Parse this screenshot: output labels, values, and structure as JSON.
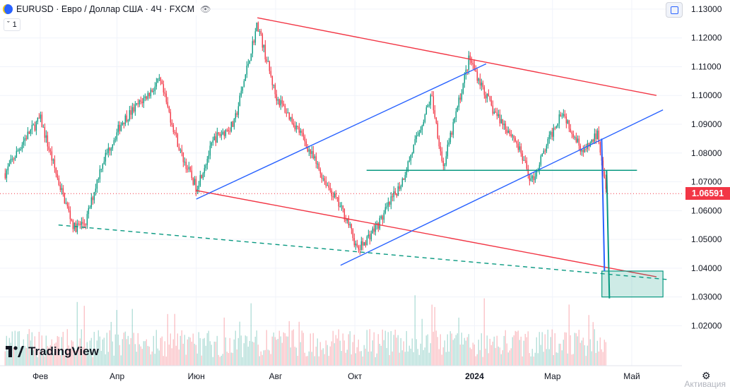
{
  "header": {
    "symbol": "EURUSD · Евро / Доллар США · 4Ч · FXCM",
    "eye_icon": "eye-icon"
  },
  "interval_box": {
    "chevron": "ˇ",
    "value": "1"
  },
  "logo": {
    "text": "TradingView"
  },
  "watermark": {
    "text": "Активация"
  },
  "colors": {
    "up": "#089981",
    "down": "#f23645",
    "red_line": "#f23645",
    "blue_line": "#2962ff",
    "green_line": "#089981",
    "last_price_bg": "#f23645"
  },
  "chart_data": {
    "type": "candlestick",
    "symbol": "EURUSD",
    "interval": "4Ч",
    "ylim": [
      1.0125,
      1.1317
    ],
    "y_ticks": [
      "1.13000",
      "1.12000",
      "1.11000",
      "1.10000",
      "1.09000",
      "1.08000",
      "1.07000",
      "1.06000",
      "1.05000",
      "1.04000",
      "1.03000",
      "1.02000"
    ],
    "x_ticks": [
      {
        "label": "Фев",
        "bold": false
      },
      {
        "label": "Апр",
        "bold": false
      },
      {
        "label": "Июн",
        "bold": false
      },
      {
        "label": "Авг",
        "bold": false
      },
      {
        "label": "Окт",
        "bold": false
      },
      {
        "label": "2024",
        "bold": true
      },
      {
        "label": "Мар",
        "bold": false
      },
      {
        "label": "Май",
        "bold": false
      }
    ],
    "last_price": "1.06591",
    "approx_path": [
      [
        "2023-01-05",
        1.073
      ],
      [
        "2023-01-20",
        1.085
      ],
      [
        "2023-02-01",
        1.092
      ],
      [
        "2023-02-15",
        1.07
      ],
      [
        "2023-02-27",
        1.054
      ],
      [
        "2023-03-08",
        1.056
      ],
      [
        "2023-03-20",
        1.076
      ],
      [
        "2023-04-05",
        1.091
      ],
      [
        "2023-04-20",
        1.098
      ],
      [
        "2023-05-04",
        1.105
      ],
      [
        "2023-05-20",
        1.08
      ],
      [
        "2023-06-01",
        1.068
      ],
      [
        "2023-06-15",
        1.085
      ],
      [
        "2023-06-30",
        1.09
      ],
      [
        "2023-07-18",
        1.125
      ],
      [
        "2023-08-01",
        1.1
      ],
      [
        "2023-08-20",
        1.087
      ],
      [
        "2023-09-06",
        1.072
      ],
      [
        "2023-09-25",
        1.057
      ],
      [
        "2023-10-03",
        1.046
      ],
      [
        "2023-10-20",
        1.056
      ],
      [
        "2023-11-06",
        1.07
      ],
      [
        "2023-11-29",
        1.1
      ],
      [
        "2023-12-08",
        1.075
      ],
      [
        "2023-12-28",
        1.113
      ],
      [
        "2024-01-15",
        1.095
      ],
      [
        "2024-02-01",
        1.085
      ],
      [
        "2024-02-14",
        1.07
      ],
      [
        "2024-03-08",
        1.095
      ],
      [
        "2024-03-25",
        1.08
      ],
      [
        "2024-04-05",
        1.087
      ],
      [
        "2024-04-12",
        1.066
      ]
    ],
    "drawings": {
      "red_channel_upper": [
        [
          "2023-07-18",
          1.127
        ],
        [
          "2024-05-20",
          1.1
        ]
      ],
      "red_channel_lower": [
        [
          "2023-06-01",
          1.067
        ],
        [
          "2024-05-20",
          1.037
        ]
      ],
      "blue_channel_upper": [
        [
          "2023-06-01",
          1.064
        ],
        [
          "2024-01-10",
          1.111
        ]
      ],
      "blue_channel_lower": [
        [
          "2023-09-20",
          1.041
        ],
        [
          "2024-05-25",
          1.095
        ]
      ],
      "green_line": [
        [
          "2023-10-10",
          1.074
        ],
        [
          "2024-05-05",
          1.074
        ]
      ],
      "green_dashed": [
        [
          "2023-02-15",
          1.055
        ],
        [
          "2024-05-30",
          1.036
        ]
      ],
      "target_box": {
        "y_top": 1.039,
        "y_bottom": 1.03
      },
      "blue_arrow_target": 1.039,
      "green_arrow_target": 1.0295
    },
    "volume": true,
    "grid": true
  }
}
